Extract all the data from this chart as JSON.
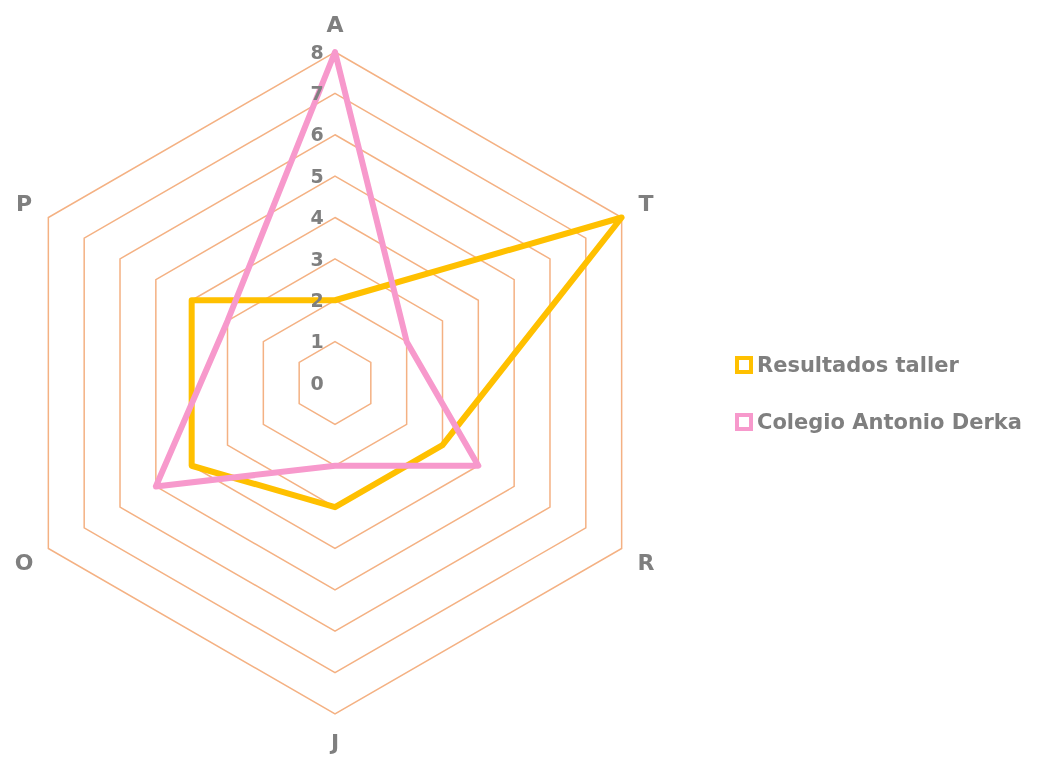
{
  "chart_data": {
    "type": "radar",
    "categories": [
      "A",
      "T",
      "R",
      "J",
      "O",
      "P"
    ],
    "series": [
      {
        "name": "Resultados taller",
        "color": "#ffc000",
        "values": [
          2,
          8,
          3,
          3,
          4,
          4
        ]
      },
      {
        "name": "Colegio Antonio Derka",
        "color": "#f799cc",
        "values": [
          8,
          2,
          4,
          2,
          5,
          3
        ]
      }
    ],
    "ylim": [
      0,
      8
    ],
    "yticks": [
      0,
      1,
      2,
      3,
      4,
      5,
      6,
      7,
      8
    ],
    "grid": true,
    "legend": "right",
    "marker": "none",
    "line_style": "solid"
  }
}
